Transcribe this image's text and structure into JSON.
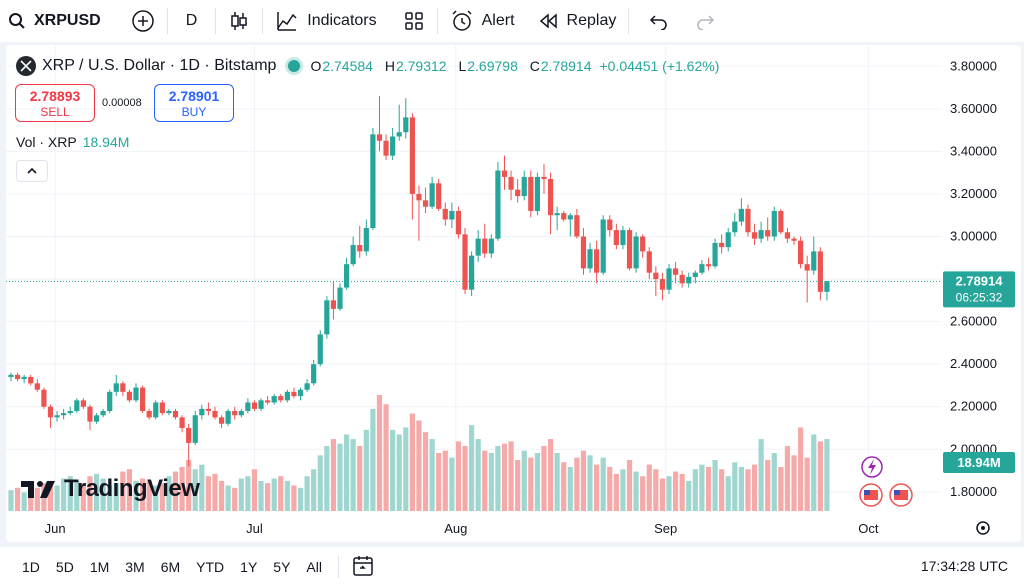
{
  "toolbar": {
    "symbol": "XRPUSD",
    "interval": "D",
    "indicators_label": "Indicators",
    "alert_label": "Alert",
    "replay_label": "Replay"
  },
  "legend": {
    "title": "XRP / U.S. Dollar · 1D · Bitstamp",
    "o_key": "O",
    "o_val": "2.74584",
    "h_key": "H",
    "h_val": "2.79312",
    "l_key": "L",
    "l_val": "2.69798",
    "c_key": "C",
    "c_val": "2.78914",
    "change": "+0.04451 (+1.62%)"
  },
  "trade": {
    "sell_price": "2.78893",
    "sell_label": "SELL",
    "spread": "0.00008",
    "buy_price": "2.78901",
    "buy_label": "BUY"
  },
  "volume_legend": {
    "label": "Vol · XRP",
    "value": "18.94M"
  },
  "branding": "TradingView",
  "colors": {
    "up": "#26a69a",
    "down": "#ef5350",
    "vol_up": "#9fd7d0",
    "vol_down": "#f5a9a8",
    "accent": "#2962ff"
  },
  "bottom": {
    "ranges": [
      "1D",
      "5D",
      "1M",
      "3M",
      "6M",
      "YTD",
      "1Y",
      "5Y",
      "All"
    ],
    "time": "17:34:28 UTC"
  },
  "chart_data": {
    "type": "candlestick",
    "symbol": "XRPUSD",
    "timeframe": "1D",
    "ylim": [
      1.71,
      3.9
    ],
    "y_ticks": [
      "3.80000",
      "3.60000",
      "3.40000",
      "3.20000",
      "3.00000",
      "2.80000",
      "2.60000",
      "2.40000",
      "2.20000",
      "2.00000",
      "1.80000"
    ],
    "x_ticks": [
      "Jun",
      "Jul",
      "Aug",
      "Sep",
      "Oct"
    ],
    "x_tick_index": [
      6.7,
      37,
      67.6,
      99.5,
      130.3
    ],
    "last_price": "2.78914",
    "countdown": "06:25:32",
    "volume_last": "18.94M",
    "candles": [
      [
        2.34,
        2.36,
        2.32,
        2.35
      ],
      [
        2.35,
        2.36,
        2.32,
        2.33
      ],
      [
        2.33,
        2.35,
        2.31,
        2.34
      ],
      [
        2.34,
        2.35,
        2.3,
        2.31
      ],
      [
        2.31,
        2.33,
        2.27,
        2.28
      ],
      [
        2.28,
        2.29,
        2.19,
        2.2
      ],
      [
        2.2,
        2.21,
        2.1,
        2.15
      ],
      [
        2.15,
        2.18,
        2.13,
        2.16
      ],
      [
        2.16,
        2.19,
        2.14,
        2.17
      ],
      [
        2.17,
        2.2,
        2.16,
        2.18
      ],
      [
        2.18,
        2.24,
        2.17,
        2.23
      ],
      [
        2.23,
        2.24,
        2.19,
        2.2
      ],
      [
        2.2,
        2.21,
        2.09,
        2.13
      ],
      [
        2.13,
        2.17,
        2.12,
        2.16
      ],
      [
        2.16,
        2.19,
        2.15,
        2.18
      ],
      [
        2.18,
        2.28,
        2.17,
        2.27
      ],
      [
        2.27,
        2.35,
        2.25,
        2.31
      ],
      [
        2.31,
        2.32,
        2.25,
        2.27
      ],
      [
        2.27,
        2.28,
        2.22,
        2.23
      ],
      [
        2.23,
        2.31,
        2.22,
        2.29
      ],
      [
        2.29,
        2.3,
        2.17,
        2.18
      ],
      [
        2.18,
        2.19,
        2.14,
        2.15
      ],
      [
        2.15,
        2.23,
        2.14,
        2.22
      ],
      [
        2.22,
        2.23,
        2.16,
        2.17
      ],
      [
        2.17,
        2.19,
        2.16,
        2.18
      ],
      [
        2.18,
        2.19,
        2.14,
        2.15
      ],
      [
        2.15,
        2.16,
        2.08,
        2.1
      ],
      [
        2.1,
        2.12,
        1.92,
        2.03
      ],
      [
        2.03,
        2.18,
        2.02,
        2.16
      ],
      [
        2.16,
        2.21,
        2.14,
        2.19
      ],
      [
        2.19,
        2.22,
        2.16,
        2.18
      ],
      [
        2.18,
        2.2,
        2.14,
        2.15
      ],
      [
        2.15,
        2.16,
        2.1,
        2.12
      ],
      [
        2.12,
        2.19,
        2.11,
        2.18
      ],
      [
        2.18,
        2.2,
        2.14,
        2.16
      ],
      [
        2.16,
        2.19,
        2.15,
        2.18
      ],
      [
        2.18,
        2.24,
        2.17,
        2.22
      ],
      [
        2.22,
        2.23,
        2.18,
        2.19
      ],
      [
        2.19,
        2.24,
        2.18,
        2.23
      ],
      [
        2.23,
        2.25,
        2.21,
        2.22
      ],
      [
        2.22,
        2.26,
        2.21,
        2.25
      ],
      [
        2.25,
        2.26,
        2.22,
        2.23
      ],
      [
        2.23,
        2.28,
        2.22,
        2.27
      ],
      [
        2.27,
        2.29,
        2.24,
        2.25
      ],
      [
        2.25,
        2.29,
        2.23,
        2.28
      ],
      [
        2.28,
        2.33,
        2.27,
        2.31
      ],
      [
        2.31,
        2.42,
        2.3,
        2.4
      ],
      [
        2.4,
        2.56,
        2.39,
        2.54
      ],
      [
        2.54,
        2.72,
        2.52,
        2.7
      ],
      [
        2.7,
        2.79,
        2.61,
        2.66
      ],
      [
        2.66,
        2.78,
        2.65,
        2.76
      ],
      [
        2.76,
        2.9,
        2.75,
        2.87
      ],
      [
        2.87,
        3.0,
        2.86,
        2.96
      ],
      [
        2.96,
        3.05,
        2.9,
        2.93
      ],
      [
        2.93,
        3.08,
        2.91,
        3.04
      ],
      [
        3.04,
        3.51,
        3.03,
        3.48
      ],
      [
        3.48,
        3.66,
        3.4,
        3.45
      ],
      [
        3.45,
        3.48,
        3.36,
        3.38
      ],
      [
        3.38,
        3.51,
        3.36,
        3.47
      ],
      [
        3.47,
        3.62,
        3.45,
        3.49
      ],
      [
        3.49,
        3.65,
        3.46,
        3.56
      ],
      [
        3.56,
        3.58,
        3.08,
        3.2
      ],
      [
        3.2,
        3.24,
        2.98,
        3.17
      ],
      [
        3.17,
        3.23,
        3.11,
        3.14
      ],
      [
        3.14,
        3.28,
        3.13,
        3.25
      ],
      [
        3.25,
        3.27,
        3.12,
        3.13
      ],
      [
        3.13,
        3.16,
        3.05,
        3.08
      ],
      [
        3.08,
        3.16,
        3.04,
        3.12
      ],
      [
        3.12,
        3.14,
        2.99,
        3.01
      ],
      [
        3.01,
        3.04,
        2.73,
        2.75
      ],
      [
        2.75,
        2.93,
        2.72,
        2.91
      ],
      [
        2.91,
        3.03,
        2.88,
        2.99
      ],
      [
        2.99,
        3.06,
        2.9,
        2.92
      ],
      [
        2.92,
        3.01,
        2.9,
        2.99
      ],
      [
        2.99,
        3.35,
        2.98,
        3.31
      ],
      [
        3.31,
        3.38,
        3.22,
        3.28
      ],
      [
        3.28,
        3.31,
        3.17,
        3.22
      ],
      [
        3.22,
        3.27,
        3.16,
        3.19
      ],
      [
        3.19,
        3.31,
        3.17,
        3.28
      ],
      [
        3.28,
        3.31,
        3.09,
        3.12
      ],
      [
        3.12,
        3.3,
        3.1,
        3.28
      ],
      [
        3.28,
        3.34,
        3.2,
        3.27
      ],
      [
        3.27,
        3.3,
        3.01,
        3.1
      ],
      [
        3.1,
        3.14,
        3.03,
        3.11
      ],
      [
        3.11,
        3.12,
        3.07,
        3.08
      ],
      [
        3.08,
        3.11,
        3.0,
        3.1
      ],
      [
        3.1,
        3.13,
        2.99,
        3.0
      ],
      [
        3.0,
        3.04,
        2.82,
        2.85
      ],
      [
        2.85,
        2.97,
        2.83,
        2.94
      ],
      [
        2.94,
        2.98,
        2.78,
        2.83
      ],
      [
        2.83,
        3.1,
        2.82,
        3.08
      ],
      [
        3.08,
        3.1,
        3.0,
        3.03
      ],
      [
        3.03,
        3.06,
        2.94,
        2.96
      ],
      [
        2.96,
        3.05,
        2.94,
        3.03
      ],
      [
        3.03,
        3.04,
        2.84,
        2.85
      ],
      [
        2.85,
        3.02,
        2.83,
        3.0
      ],
      [
        3.0,
        3.01,
        2.9,
        2.93
      ],
      [
        2.93,
        2.95,
        2.8,
        2.83
      ],
      [
        2.83,
        2.86,
        2.72,
        2.8
      ],
      [
        2.8,
        2.83,
        2.7,
        2.75
      ],
      [
        2.75,
        2.87,
        2.73,
        2.85
      ],
      [
        2.85,
        2.88,
        2.78,
        2.82
      ],
      [
        2.82,
        2.84,
        2.76,
        2.78
      ],
      [
        2.78,
        2.83,
        2.76,
        2.81
      ],
      [
        2.81,
        2.84,
        2.78,
        2.83
      ],
      [
        2.83,
        2.89,
        2.82,
        2.87
      ],
      [
        2.87,
        2.9,
        2.84,
        2.86
      ],
      [
        2.86,
        2.99,
        2.85,
        2.97
      ],
      [
        2.97,
        3.01,
        2.92,
        2.95
      ],
      [
        2.95,
        3.04,
        2.93,
        3.02
      ],
      [
        3.02,
        3.11,
        3.0,
        3.07
      ],
      [
        3.07,
        3.18,
        3.05,
        3.13
      ],
      [
        3.13,
        3.15,
        3.0,
        3.02
      ],
      [
        3.02,
        3.06,
        2.96,
        2.99
      ],
      [
        2.99,
        3.07,
        2.97,
        3.03
      ],
      [
        3.03,
        3.09,
        2.98,
        3.0
      ],
      [
        3.0,
        3.14,
        2.98,
        3.12
      ],
      [
        3.12,
        3.13,
        3.01,
        3.02
      ],
      [
        3.02,
        3.04,
        2.97,
        2.99
      ],
      [
        2.99,
        3.0,
        2.96,
        2.98
      ],
      [
        2.98,
        3.0,
        2.85,
        2.87
      ],
      [
        2.87,
        2.91,
        2.69,
        2.84
      ],
      [
        2.84,
        3.0,
        2.82,
        2.93
      ],
      [
        2.93,
        2.95,
        2.7,
        2.74
      ],
      [
        2.74,
        2.79,
        2.7,
        2.79
      ]
    ],
    "volume_relative": [
      0.18,
      0.2,
      0.16,
      0.22,
      0.2,
      0.24,
      0.26,
      0.22,
      0.28,
      0.3,
      0.26,
      0.24,
      0.3,
      0.32,
      0.28,
      0.22,
      0.24,
      0.34,
      0.36,
      0.26,
      0.28,
      0.26,
      0.22,
      0.24,
      0.3,
      0.34,
      0.38,
      0.44,
      0.36,
      0.4,
      0.3,
      0.32,
      0.26,
      0.22,
      0.2,
      0.28,
      0.3,
      0.36,
      0.26,
      0.24,
      0.28,
      0.3,
      0.26,
      0.22,
      0.2,
      0.3,
      0.36,
      0.48,
      0.56,
      0.62,
      0.58,
      0.66,
      0.62,
      0.56,
      0.7,
      0.88,
      1.0,
      0.92,
      0.7,
      0.66,
      0.72,
      0.84,
      0.78,
      0.68,
      0.62,
      0.5,
      0.52,
      0.46,
      0.6,
      0.56,
      0.74,
      0.62,
      0.52,
      0.5,
      0.56,
      0.58,
      0.6,
      0.44,
      0.52,
      0.46,
      0.5,
      0.56,
      0.62,
      0.5,
      0.42,
      0.38,
      0.46,
      0.52,
      0.48,
      0.4,
      0.46,
      0.38,
      0.32,
      0.36,
      0.44,
      0.34,
      0.3,
      0.4,
      0.36,
      0.28,
      0.3,
      0.34,
      0.32,
      0.26,
      0.36,
      0.4,
      0.38,
      0.44,
      0.36,
      0.3,
      0.42,
      0.38,
      0.36,
      0.4,
      0.62,
      0.44,
      0.5,
      0.38,
      0.56,
      0.48,
      0.72,
      0.46,
      0.66,
      0.6,
      0.62
    ]
  }
}
